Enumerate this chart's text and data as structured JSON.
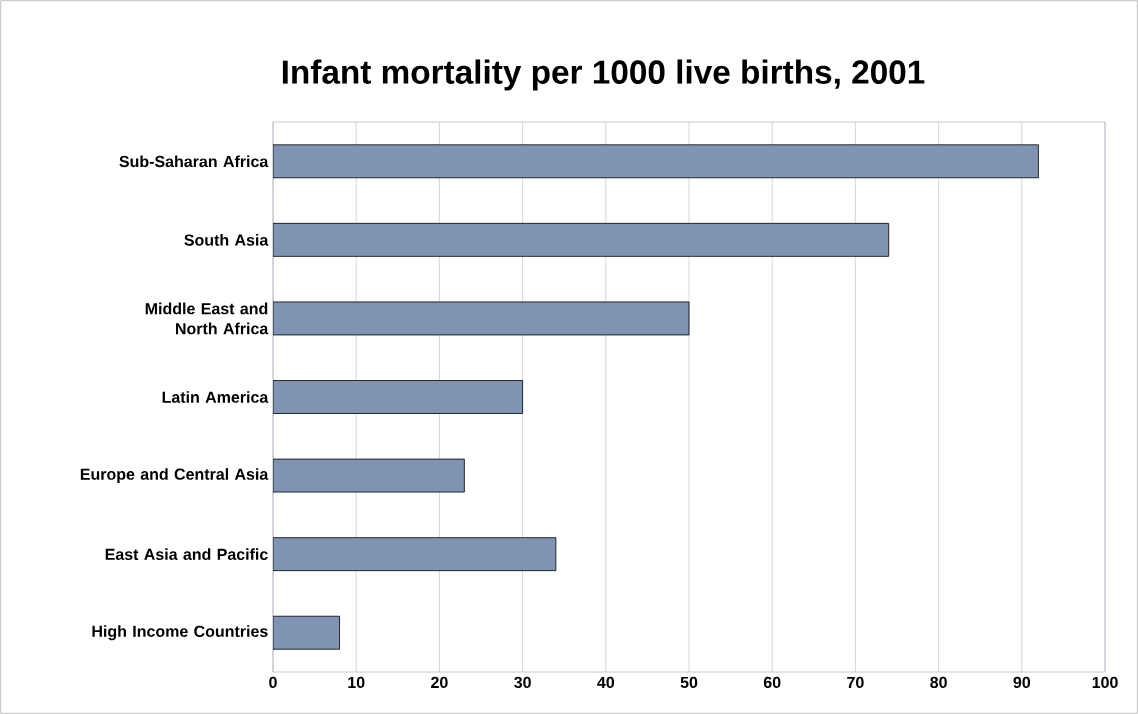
{
  "chart_data": {
    "type": "bar",
    "orientation": "horizontal",
    "title": "Infant mortality per 1000 live births, 2001",
    "categories": [
      "Sub-Saharan Africa",
      "South Asia",
      "Middle East and North Africa",
      "Latin America",
      "Europe and Central Asia",
      "East Asia and Pacific",
      "High Income Countries"
    ],
    "values": [
      92,
      74,
      50,
      30,
      23,
      34,
      8
    ],
    "color": "#7f93b3",
    "xlim": [
      0,
      100
    ],
    "xticks": [
      0,
      10,
      20,
      30,
      40,
      50,
      60,
      70,
      80,
      90,
      100
    ],
    "grid": "x"
  }
}
